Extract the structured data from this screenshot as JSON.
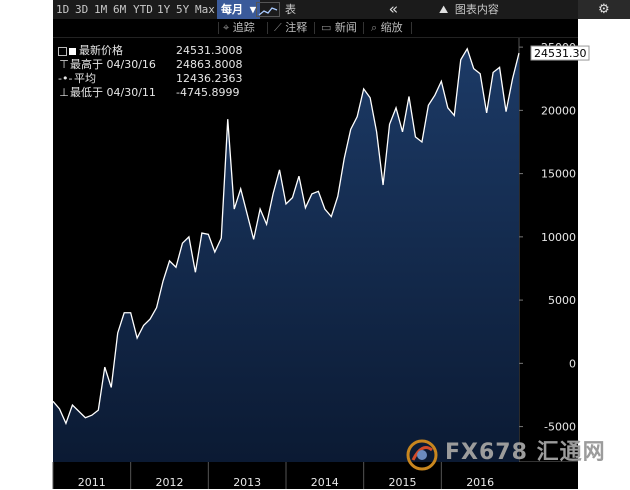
{
  "toolbar": {
    "ranges": [
      "1D",
      "3D",
      "1M",
      "6M",
      "YTD",
      "1Y",
      "5Y",
      "Max"
    ],
    "frequency": "每月",
    "chart_type_label": "表",
    "nav_back": "«",
    "chart_content_label": "图表内容",
    "settings_icon": "gear-icon"
  },
  "toolbar2": {
    "tools": [
      "追踪",
      "注释",
      "新闻",
      "缩放"
    ]
  },
  "legend": {
    "last_label": "最新价格",
    "last_value": "24531.3008",
    "high_label": "最高于 04/30/16",
    "high_value": "24863.8008",
    "avg_label": "平均",
    "avg_value": "12436.2363",
    "low_label": "最低于 04/30/11",
    "low_value": "-4745.8999"
  },
  "price_tag": "24531.30",
  "watermark": {
    "text": "FX678 汇通网",
    "logo_icon": "fx678-logo-icon"
  },
  "colors": {
    "background": "#000000",
    "line": "#ffffff",
    "fill_top": "#1c3a66",
    "fill_bottom": "#0b1a33"
  },
  "chart_data": {
    "type": "area",
    "title": "",
    "xlabel": "",
    "ylabel": "",
    "x_tick_labels": [
      "2011",
      "2012",
      "2013",
      "2014",
      "2015",
      "2016"
    ],
    "y_ticks": [
      -5000,
      0,
      5000,
      10000,
      15000,
      20000,
      25000
    ],
    "ylim": [
      -7800,
      25800
    ],
    "grid": false,
    "start": "2011-01",
    "series": [
      {
        "values": [
          -3000,
          -3600,
          -4746,
          -3300,
          -3800,
          -4300,
          -4100,
          -3700,
          -300,
          -1900,
          2400,
          4000,
          4000,
          2000,
          3000,
          3500,
          4400,
          6500,
          8100,
          7600,
          9500,
          10000,
          7200,
          10300,
          10200,
          8800,
          9900,
          19300,
          12200,
          13800,
          11800,
          9800,
          12200,
          11000,
          13400,
          15300,
          12600,
          13100,
          14800,
          12300,
          13400,
          13600,
          12200,
          11600,
          13200,
          16200,
          18500,
          19500,
          21700,
          21000,
          18300,
          14100,
          18900,
          20200,
          18300,
          21100,
          17900,
          17500,
          20400,
          21200,
          22300,
          20200,
          19600,
          24000,
          24864,
          23300,
          22900,
          19800,
          23000,
          23400,
          19900,
          22500,
          24531
        ]
      }
    ]
  }
}
